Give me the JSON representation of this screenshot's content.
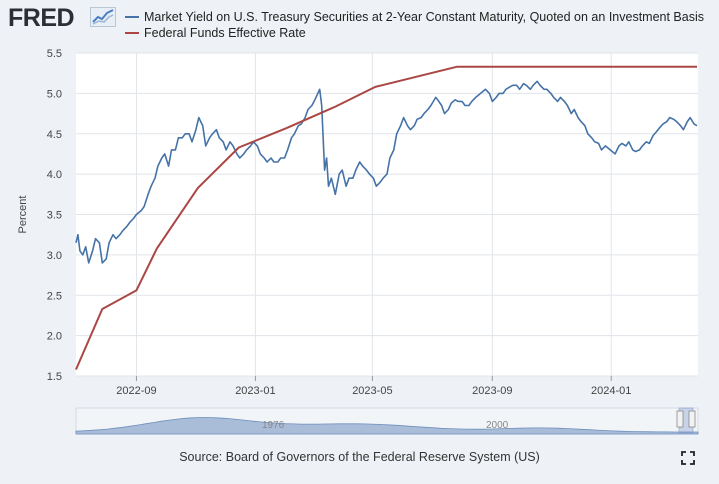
{
  "header": {
    "logo_text": "FRED",
    "logo_icon": "chart-line-icon"
  },
  "colors": {
    "series_0": "#4572a7",
    "series_1": "#aa4643",
    "plot_bg": "#ffffff",
    "page_bg": "#eef2f6",
    "grid": "#e1e5ea",
    "navigator_fill": "#a9bcd8"
  },
  "source": "Source: Board of Governors of the Federal Reserve System (US)",
  "navigator": {
    "labels": [
      "1976",
      "2000"
    ]
  },
  "chart_data": {
    "type": "line",
    "title": "",
    "xlabel": "",
    "ylabel": "Percent",
    "xlim": [
      "2022-07-01",
      "2024-03-30"
    ],
    "ylim": [
      1.5,
      5.5
    ],
    "y_ticks": [
      1.5,
      2.0,
      2.5,
      3.0,
      3.5,
      4.0,
      4.5,
      5.0,
      5.5
    ],
    "x_ticks": [
      {
        "date": "2022-09-01",
        "label": "2022-09"
      },
      {
        "date": "2023-01-01",
        "label": "2023-01"
      },
      {
        "date": "2023-05-01",
        "label": "2023-05"
      },
      {
        "date": "2023-09-01",
        "label": "2023-09"
      },
      {
        "date": "2024-01-01",
        "label": "2024-01"
      }
    ],
    "grid": true,
    "legend_position": "top",
    "series": [
      {
        "name": "Market Yield on U.S. Treasury Securities at 2-Year Constant Maturity, Quoted on an Investment Basis",
        "x": [
          "2022-07-01",
          "2022-07-03",
          "2022-07-05",
          "2022-07-08",
          "2022-07-11",
          "2022-07-14",
          "2022-07-18",
          "2022-07-21",
          "2022-07-25",
          "2022-07-28",
          "2022-08-01",
          "2022-08-04",
          "2022-08-08",
          "2022-08-11",
          "2022-08-15",
          "2022-08-18",
          "2022-08-22",
          "2022-08-25",
          "2022-08-29",
          "2022-09-01",
          "2022-09-06",
          "2022-09-09",
          "2022-09-13",
          "2022-09-16",
          "2022-09-20",
          "2022-09-23",
          "2022-09-27",
          "2022-09-30",
          "2022-10-04",
          "2022-10-07",
          "2022-10-11",
          "2022-10-14",
          "2022-10-18",
          "2022-10-21",
          "2022-10-25",
          "2022-10-28",
          "2022-11-01",
          "2022-11-04",
          "2022-11-08",
          "2022-11-11",
          "2022-11-15",
          "2022-11-18",
          "2022-11-22",
          "2022-11-25",
          "2022-11-29",
          "2022-12-02",
          "2022-12-06",
          "2022-12-09",
          "2022-12-13",
          "2022-12-16",
          "2022-12-20",
          "2022-12-23",
          "2022-12-27",
          "2022-12-30",
          "2023-01-03",
          "2023-01-06",
          "2023-01-10",
          "2023-01-13",
          "2023-01-17",
          "2023-01-20",
          "2023-01-24",
          "2023-01-27",
          "2023-01-31",
          "2023-02-03",
          "2023-02-07",
          "2023-02-10",
          "2023-02-14",
          "2023-02-17",
          "2023-02-21",
          "2023-02-24",
          "2023-02-28",
          "2023-03-03",
          "2023-03-06",
          "2023-03-08",
          "2023-03-10",
          "2023-03-13",
          "2023-03-15",
          "2023-03-17",
          "2023-03-20",
          "2023-03-24",
          "2023-03-28",
          "2023-03-31",
          "2023-04-04",
          "2023-04-07",
          "2023-04-11",
          "2023-04-14",
          "2023-04-18",
          "2023-04-21",
          "2023-04-25",
          "2023-04-28",
          "2023-05-02",
          "2023-05-05",
          "2023-05-09",
          "2023-05-12",
          "2023-05-16",
          "2023-05-19",
          "2023-05-23",
          "2023-05-26",
          "2023-05-30",
          "2023-06-02",
          "2023-06-06",
          "2023-06-09",
          "2023-06-13",
          "2023-06-16",
          "2023-06-20",
          "2023-06-23",
          "2023-06-27",
          "2023-06-30",
          "2023-07-05",
          "2023-07-07",
          "2023-07-11",
          "2023-07-14",
          "2023-07-18",
          "2023-07-21",
          "2023-07-25",
          "2023-07-28",
          "2023-08-01",
          "2023-08-04",
          "2023-08-08",
          "2023-08-11",
          "2023-08-15",
          "2023-08-18",
          "2023-08-22",
          "2023-08-25",
          "2023-08-29",
          "2023-09-01",
          "2023-09-05",
          "2023-09-08",
          "2023-09-12",
          "2023-09-15",
          "2023-09-19",
          "2023-09-22",
          "2023-09-26",
          "2023-09-29",
          "2023-10-03",
          "2023-10-06",
          "2023-10-10",
          "2023-10-13",
          "2023-10-17",
          "2023-10-20",
          "2023-10-24",
          "2023-10-27",
          "2023-10-31",
          "2023-11-03",
          "2023-11-07",
          "2023-11-10",
          "2023-11-14",
          "2023-11-17",
          "2023-11-21",
          "2023-11-24",
          "2023-11-28",
          "2023-12-01",
          "2023-12-05",
          "2023-12-08",
          "2023-12-12",
          "2023-12-15",
          "2023-12-19",
          "2023-12-22",
          "2023-12-26",
          "2023-12-29",
          "2024-01-02",
          "2024-01-05",
          "2024-01-09",
          "2024-01-12",
          "2024-01-16",
          "2024-01-19",
          "2024-01-23",
          "2024-01-26",
          "2024-01-30",
          "2024-02-02",
          "2024-02-06",
          "2024-02-09",
          "2024-02-13",
          "2024-02-16",
          "2024-02-20",
          "2024-02-23",
          "2024-02-27",
          "2024-03-01",
          "2024-03-05",
          "2024-03-08",
          "2024-03-12",
          "2024-03-15",
          "2024-03-19",
          "2024-03-22",
          "2024-03-26",
          "2024-03-29"
        ],
        "y": [
          3.15,
          3.25,
          3.05,
          3.0,
          3.1,
          2.9,
          3.05,
          3.2,
          3.15,
          2.9,
          2.95,
          3.15,
          3.25,
          3.2,
          3.25,
          3.3,
          3.35,
          3.4,
          3.45,
          3.5,
          3.55,
          3.6,
          3.75,
          3.85,
          3.95,
          4.1,
          4.2,
          4.25,
          4.1,
          4.3,
          4.3,
          4.45,
          4.45,
          4.5,
          4.5,
          4.4,
          4.55,
          4.7,
          4.6,
          4.35,
          4.45,
          4.5,
          4.55,
          4.45,
          4.4,
          4.3,
          4.4,
          4.35,
          4.25,
          4.2,
          4.25,
          4.3,
          4.35,
          4.4,
          4.35,
          4.25,
          4.2,
          4.15,
          4.2,
          4.15,
          4.15,
          4.2,
          4.2,
          4.3,
          4.45,
          4.5,
          4.6,
          4.62,
          4.7,
          4.8,
          4.85,
          4.92,
          5.0,
          5.05,
          4.85,
          4.05,
          4.2,
          3.85,
          3.95,
          3.75,
          4.0,
          4.05,
          3.85,
          3.95,
          3.95,
          4.05,
          4.15,
          4.1,
          4.05,
          4.0,
          3.95,
          3.85,
          3.9,
          3.95,
          4.0,
          4.2,
          4.3,
          4.5,
          4.6,
          4.7,
          4.6,
          4.55,
          4.6,
          4.68,
          4.7,
          4.75,
          4.8,
          4.85,
          4.95,
          4.92,
          4.85,
          4.75,
          4.8,
          4.88,
          4.92,
          4.9,
          4.9,
          4.85,
          4.85,
          4.9,
          4.95,
          4.98,
          5.02,
          5.05,
          5.0,
          4.9,
          4.95,
          5.0,
          5.0,
          5.05,
          5.08,
          5.1,
          5.1,
          5.05,
          5.12,
          5.1,
          5.05,
          5.1,
          5.15,
          5.1,
          5.05,
          5.05,
          5.0,
          4.95,
          4.9,
          4.95,
          4.9,
          4.85,
          4.75,
          4.8,
          4.7,
          4.65,
          4.6,
          4.5,
          4.45,
          4.4,
          4.38,
          4.3,
          4.35,
          4.32,
          4.28,
          4.25,
          4.35,
          4.38,
          4.35,
          4.4,
          4.3,
          4.28,
          4.3,
          4.35,
          4.4,
          4.38,
          4.48,
          4.52,
          4.58,
          4.62,
          4.65,
          4.7,
          4.68,
          4.65,
          4.6,
          4.55,
          4.65,
          4.7,
          4.62,
          4.6
        ]
      },
      {
        "name": "Federal Funds Effective Rate",
        "x": [
          "2022-07-01",
          "2022-07-28",
          "2022-09-01",
          "2022-09-22",
          "2022-11-03",
          "2022-12-15",
          "2023-02-02",
          "2023-03-23",
          "2023-05-04",
          "2023-07-27",
          "2024-03-29"
        ],
        "y": [
          1.58,
          2.33,
          2.56,
          3.08,
          3.83,
          4.33,
          4.57,
          4.83,
          5.08,
          5.33,
          5.33
        ]
      }
    ]
  }
}
